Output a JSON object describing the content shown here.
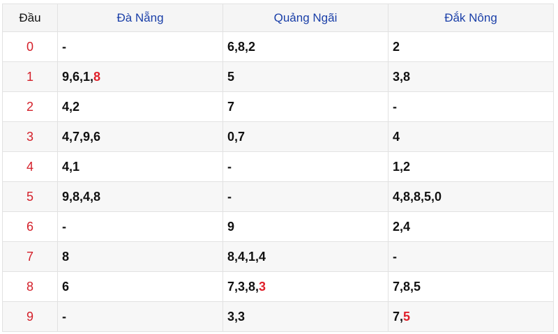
{
  "header": {
    "dau": "Đầu",
    "provinces": [
      "Đà Nẵng",
      "Quảng Ngãi",
      "Đắk Nông"
    ]
  },
  "highlight_color": "#e0202a",
  "rows": [
    {
      "head": "0",
      "cells": [
        [
          {
            "t": "-"
          }
        ],
        [
          {
            "t": "6,8,2"
          }
        ],
        [
          {
            "t": "2"
          }
        ]
      ]
    },
    {
      "head": "1",
      "cells": [
        [
          {
            "t": "9,6,1,"
          },
          {
            "t": "8",
            "hl": true
          }
        ],
        [
          {
            "t": "5"
          }
        ],
        [
          {
            "t": "3,8"
          }
        ]
      ]
    },
    {
      "head": "2",
      "cells": [
        [
          {
            "t": "4,2"
          }
        ],
        [
          {
            "t": "7"
          }
        ],
        [
          {
            "t": "-"
          }
        ]
      ]
    },
    {
      "head": "3",
      "cells": [
        [
          {
            "t": "4,7,9,6"
          }
        ],
        [
          {
            "t": "0,7"
          }
        ],
        [
          {
            "t": "4"
          }
        ]
      ]
    },
    {
      "head": "4",
      "cells": [
        [
          {
            "t": "4,1"
          }
        ],
        [
          {
            "t": "-"
          }
        ],
        [
          {
            "t": "1,2"
          }
        ]
      ]
    },
    {
      "head": "5",
      "cells": [
        [
          {
            "t": "9,8,4,8"
          }
        ],
        [
          {
            "t": "-"
          }
        ],
        [
          {
            "t": "4,8,8,5,0"
          }
        ]
      ]
    },
    {
      "head": "6",
      "cells": [
        [
          {
            "t": "-"
          }
        ],
        [
          {
            "t": "9"
          }
        ],
        [
          {
            "t": "2,4"
          }
        ]
      ]
    },
    {
      "head": "7",
      "cells": [
        [
          {
            "t": "8"
          }
        ],
        [
          {
            "t": "8,4,1,4"
          }
        ],
        [
          {
            "t": "-"
          }
        ]
      ]
    },
    {
      "head": "8",
      "cells": [
        [
          {
            "t": "6"
          }
        ],
        [
          {
            "t": "7,3,8,"
          },
          {
            "t": "3",
            "hl": true
          }
        ],
        [
          {
            "t": "7,8,5"
          }
        ]
      ]
    },
    {
      "head": "9",
      "cells": [
        [
          {
            "t": "-"
          }
        ],
        [
          {
            "t": "3,3"
          }
        ],
        [
          {
            "t": "7,"
          },
          {
            "t": "5",
            "hl": true
          }
        ]
      ]
    }
  ]
}
